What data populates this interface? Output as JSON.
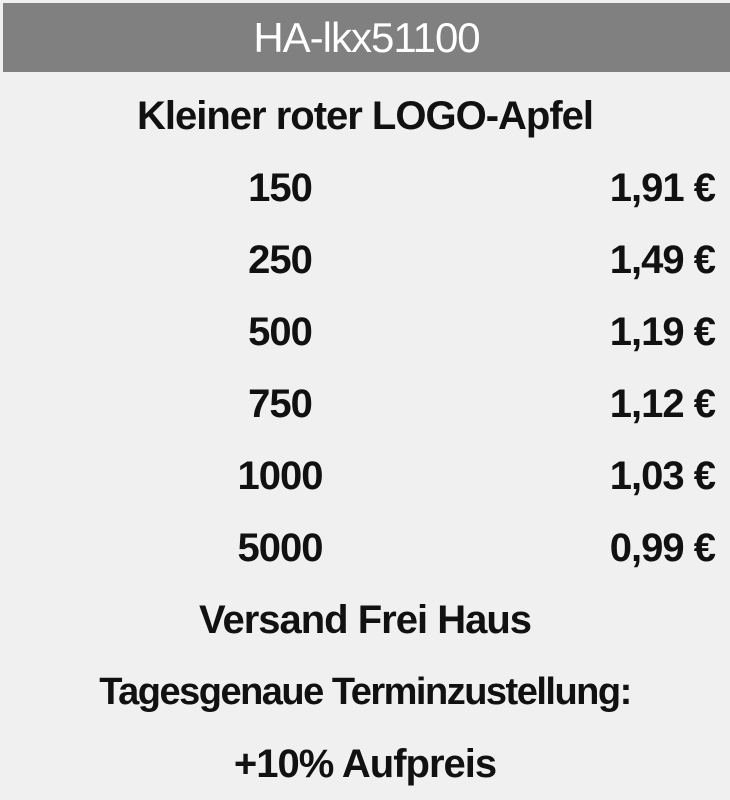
{
  "header": {
    "title": "HA-lkx51100"
  },
  "product": "Kleiner roter LOGO-Apfel",
  "prices": [
    {
      "qty": "150",
      "price": "1,91 €"
    },
    {
      "qty": "250",
      "price": "1,49 €"
    },
    {
      "qty": "500",
      "price": "1,19 €"
    },
    {
      "qty": "750",
      "price": "1,12 €"
    },
    {
      "qty": "1000",
      "price": "1,03 €"
    },
    {
      "qty": "5000",
      "price": "0,99 €"
    }
  ],
  "shipping": "Versand Frei Haus",
  "delivery": "Tagesgenaue Terminzustellung:",
  "surcharge": "+10% Aufpreis",
  "colors": {
    "header_bg": "#808080",
    "body_bg": "#f0f0f0"
  }
}
